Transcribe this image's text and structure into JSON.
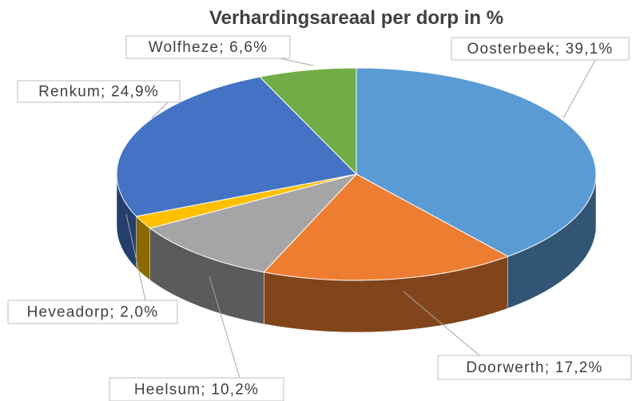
{
  "chart_data": {
    "type": "pie3d",
    "title": "Verhardingsareaal per dorp in %",
    "values": [
      39.1,
      17.2,
      10.2,
      2.0,
      24.9,
      6.6
    ],
    "value_labels": [
      "Oosterbeek; 39,1%",
      "Doorwerth; 17,2%",
      "Heelsum; 10,2%",
      "Heveadorp; 2,0%",
      "Renkum; 24,9%",
      "Wolfheze; 6,6%"
    ],
    "colors": [
      "#5b9bd5",
      "#ed7d31",
      "#a5a5a5",
      "#ffc000",
      "#4472c4",
      "#70ad47"
    ]
  }
}
